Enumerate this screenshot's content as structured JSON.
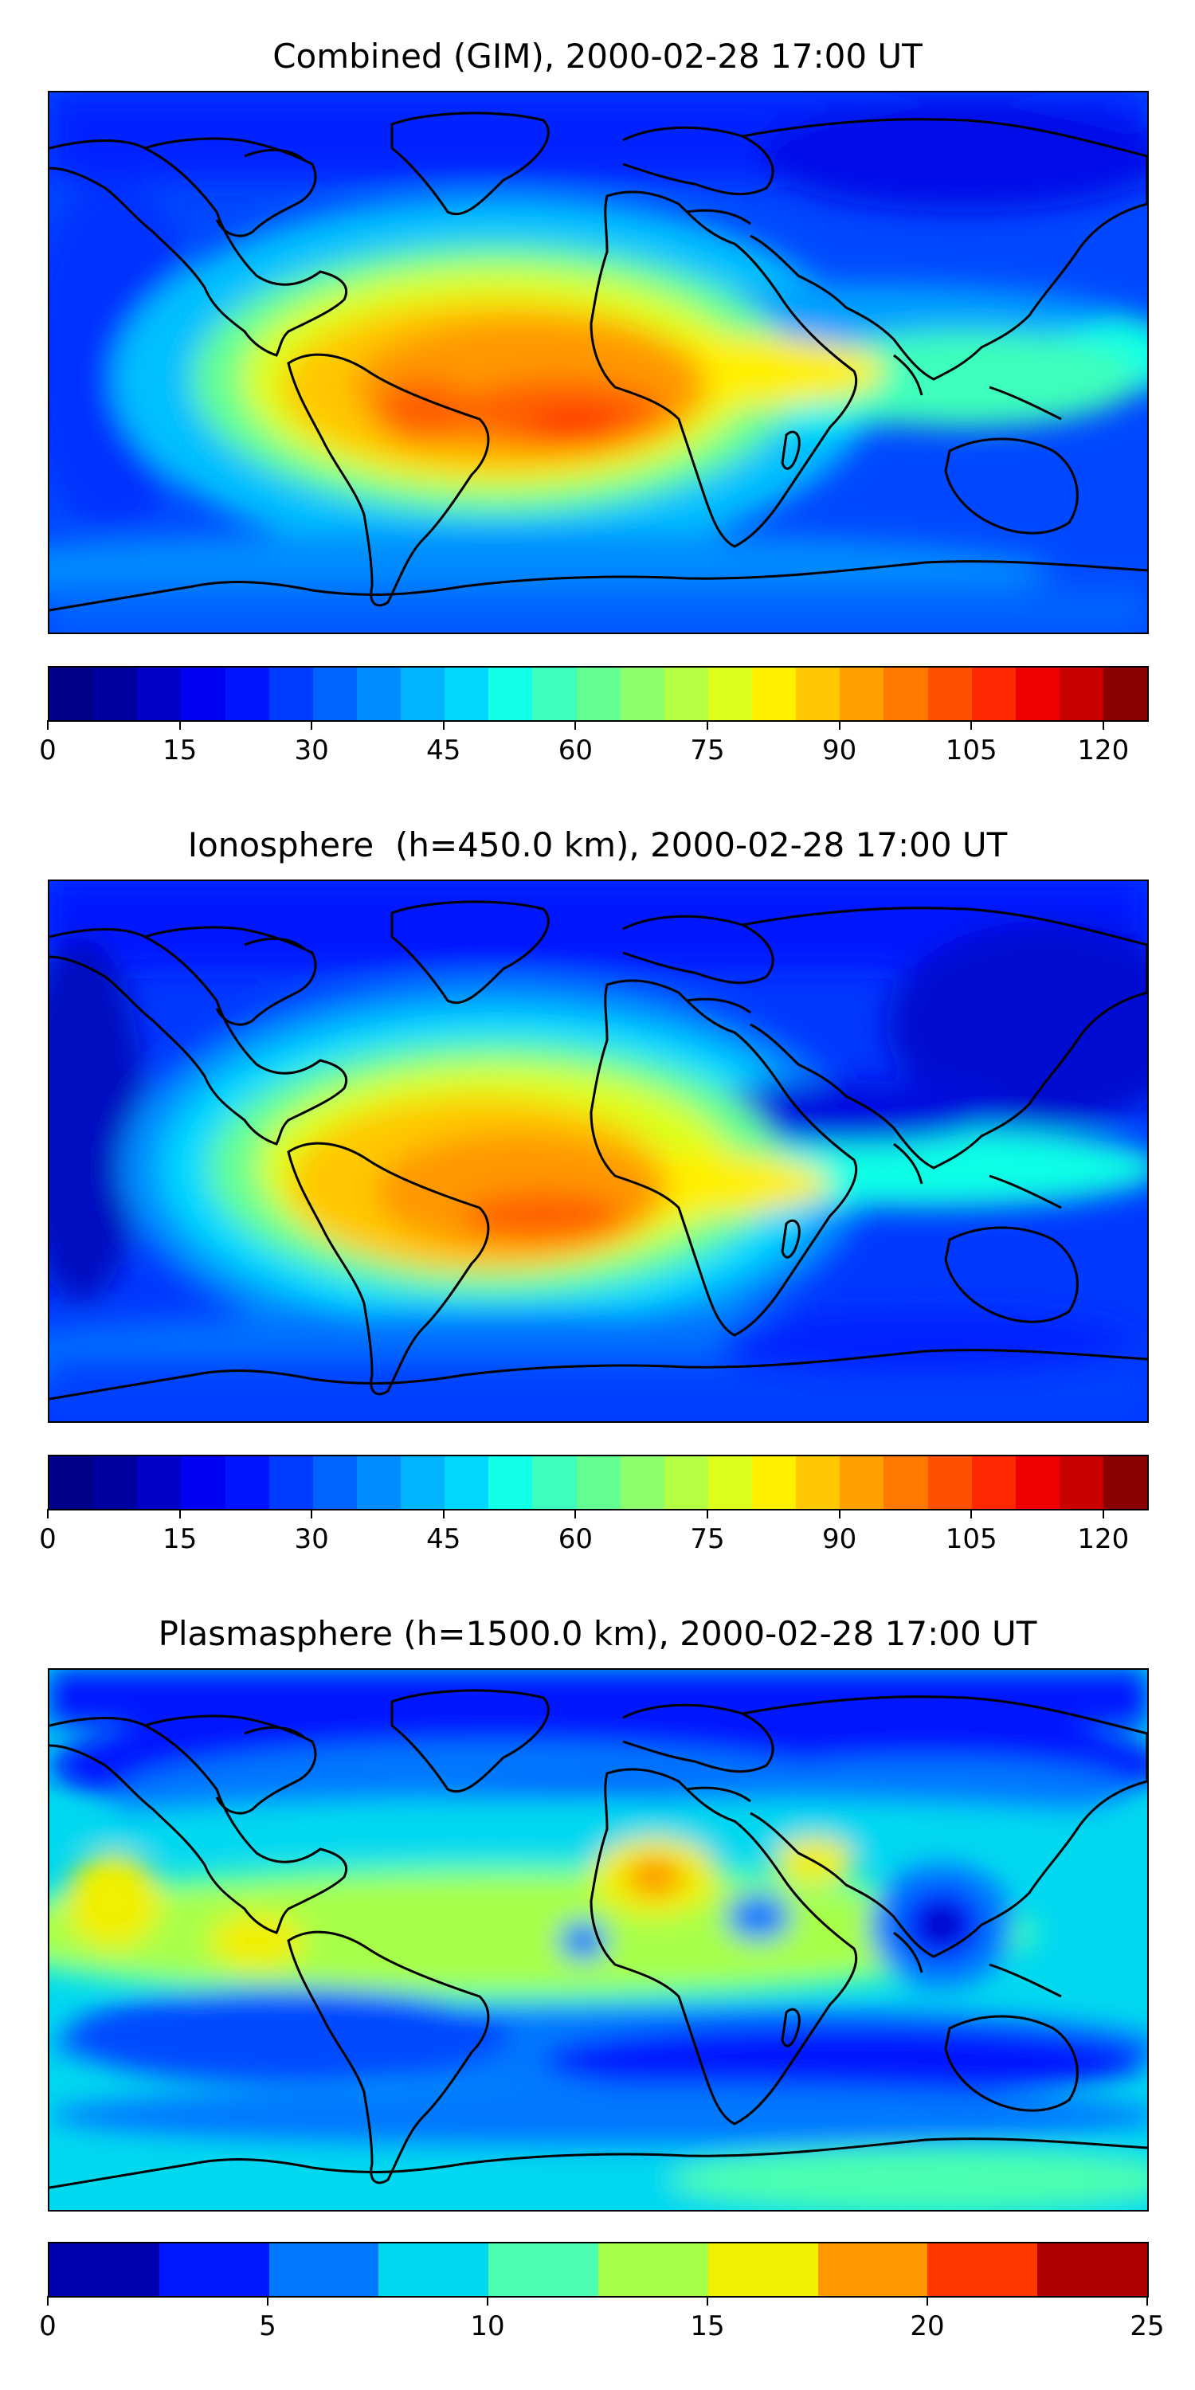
{
  "panels": [
    {
      "id": "combined",
      "title": "Combined (GIM), 2000-02-28 17:00 UT",
      "field": "combined",
      "colorbar": {
        "min": 0,
        "max": 125,
        "step": 5,
        "tick_labels": [
          "0",
          "15",
          "30",
          "45",
          "60",
          "75",
          "90",
          "105",
          "120"
        ],
        "colors": [
          "#00008b",
          "#00009f",
          "#0000c9",
          "#0000f2",
          "#0014ff",
          "#003cff",
          "#0064ff",
          "#008cff",
          "#00b4ff",
          "#00d8ff",
          "#10ffe6",
          "#3cffbb",
          "#64ff93",
          "#8cff6b",
          "#b4ff43",
          "#dcff1b",
          "#fff000",
          "#ffc800",
          "#ffa000",
          "#ff7800",
          "#ff5000",
          "#ff2800",
          "#f00000",
          "#c80000",
          "#8b0000"
        ]
      }
    },
    {
      "id": "ionosphere",
      "title": "Ionosphere  (h=450.0 km), 2000-02-28 17:00 UT",
      "field": "ionosphere",
      "colorbar": {
        "min": 0,
        "max": 125,
        "step": 5,
        "tick_labels": [
          "0",
          "15",
          "30",
          "45",
          "60",
          "75",
          "90",
          "105",
          "120"
        ],
        "colors": [
          "#00008b",
          "#00009f",
          "#0000c9",
          "#0000f2",
          "#0014ff",
          "#003cff",
          "#0064ff",
          "#008cff",
          "#00b4ff",
          "#00d8ff",
          "#10ffe6",
          "#3cffbb",
          "#64ff93",
          "#8cff6b",
          "#b4ff43",
          "#dcff1b",
          "#fff000",
          "#ffc800",
          "#ffa000",
          "#ff7800",
          "#ff5000",
          "#ff2800",
          "#f00000",
          "#c80000",
          "#8b0000"
        ]
      }
    },
    {
      "id": "plasmasphere",
      "title": "Plasmasphere (h=1500.0 km), 2000-02-28 17:00 UT",
      "field": "plasmasphere",
      "colorbar": {
        "min": 0,
        "max": 25,
        "step": 2.5,
        "tick_labels": [
          "0",
          "5",
          "10",
          "15",
          "20",
          "25"
        ],
        "colors": [
          "#0000b0",
          "#0018ff",
          "#0078ff",
          "#00d8f0",
          "#4cffb0",
          "#a8ff48",
          "#f0f000",
          "#ff9800",
          "#ff3800",
          "#b00000"
        ]
      }
    }
  ]
}
